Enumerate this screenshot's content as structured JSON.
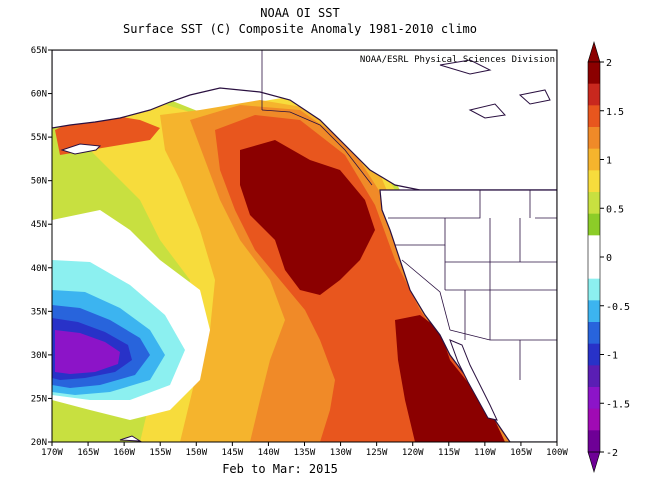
{
  "title_line1": "NOAA OI SST",
  "title_line2": "Surface SST (C) Composite Anomaly 1981-2010 climo",
  "credit": "NOAA/ESRL Physical Sciences Division",
  "period": "Feb to Mar: 2015",
  "lon_ticks": [
    "170W",
    "165W",
    "160W",
    "155W",
    "150W",
    "145W",
    "140W",
    "135W",
    "130W",
    "125W",
    "120W",
    "115W",
    "110W",
    "105W",
    "100W"
  ],
  "lat_ticks": [
    "65N",
    "60N",
    "55N",
    "50N",
    "45N",
    "40N",
    "35N",
    "30N",
    "25N",
    "20N"
  ],
  "colorbar": {
    "labels": [
      "2",
      "1.5",
      "1",
      "0.5",
      "0",
      "-0.5",
      "-1",
      "-1.5",
      "-2"
    ],
    "colors": [
      "#8b0000",
      "#c8281e",
      "#e8561e",
      "#f08a28",
      "#f5b42d",
      "#f7dc3c",
      "#c8e040",
      "#8ccc28",
      "#ffffff",
      "#ffffff",
      "#8cf0f0",
      "#3cb4f0",
      "#2864dc",
      "#2832c8",
      "#5a1eb4",
      "#8c14c8",
      "#a00ab4",
      "#6e0096"
    ],
    "top_color": "#8b0000",
    "bottom_color": "#6e0096"
  }
}
